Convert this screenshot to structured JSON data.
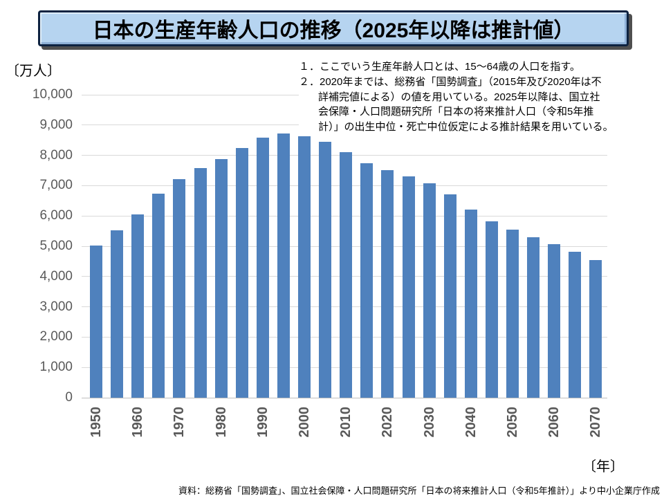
{
  "title": "日本の生産年齢人口の推移（2025年以降は推計値）",
  "y_axis_unit": "〔万人〕",
  "x_axis_unit": "〔年〕",
  "notes": {
    "lines": [
      {
        "text": "１．ここでいう生産年齢人口とは、15～64歳の人口を指す。",
        "indent": false
      },
      {
        "text": "２．2020年までは、総務省「国勢調査」（2015年及び2020年は不",
        "indent": false
      },
      {
        "text": "詳補完値による）の値を用いている。2025年以降は、国立社",
        "indent": true
      },
      {
        "text": "会保障・人口問題研究所「日本の将来推計人口（令和5年推",
        "indent": true
      },
      {
        "text": "計）」の出生中位・死亡中位仮定による推計結果を用いている。",
        "indent": true
      }
    ]
  },
  "source": "資料：総務省「国勢調査」、国立社会保障・人口問題研究所「日本の将来推計人口（令和5年推計）」より中小企業庁作成",
  "chart_data": {
    "type": "bar",
    "title": "日本の生産年齢人口の推移（2025年以降は推計値）",
    "xlabel": "〔年〕",
    "ylabel": "〔万人〕",
    "categories": [
      1950,
      1955,
      1960,
      1965,
      1970,
      1975,
      1980,
      1985,
      1990,
      1995,
      2000,
      2005,
      2010,
      2015,
      2020,
      2025,
      2030,
      2035,
      2040,
      2045,
      2050,
      2055,
      2060,
      2065,
      2070
    ],
    "values": [
      5017,
      5517,
      6047,
      6744,
      7212,
      7581,
      7883,
      8251,
      8590,
      8716,
      8622,
      8442,
      8103,
      7729,
      7509,
      7310,
      7076,
      6722,
      6213,
      5832,
      5540,
      5306,
      5078,
      4809,
      4535
    ],
    "x_tick_labels": [
      "1950",
      "1960",
      "1970",
      "1980",
      "1990",
      "2000",
      "2010",
      "2020",
      "2030",
      "2040",
      "2050",
      "2060",
      "2070"
    ],
    "y_tick_labels": [
      "0",
      "1,000",
      "2,000",
      "3,000",
      "4,000",
      "5,000",
      "6,000",
      "7,000",
      "8,000",
      "9,000",
      "10,000"
    ],
    "ylim": [
      0,
      10000
    ],
    "grid": true,
    "legend": false,
    "bar_color": "#4f81bd",
    "gridline_color": "#d9d9d9",
    "tick_label_color": "#595959",
    "title_fill_color": "#b6d4f0"
  }
}
